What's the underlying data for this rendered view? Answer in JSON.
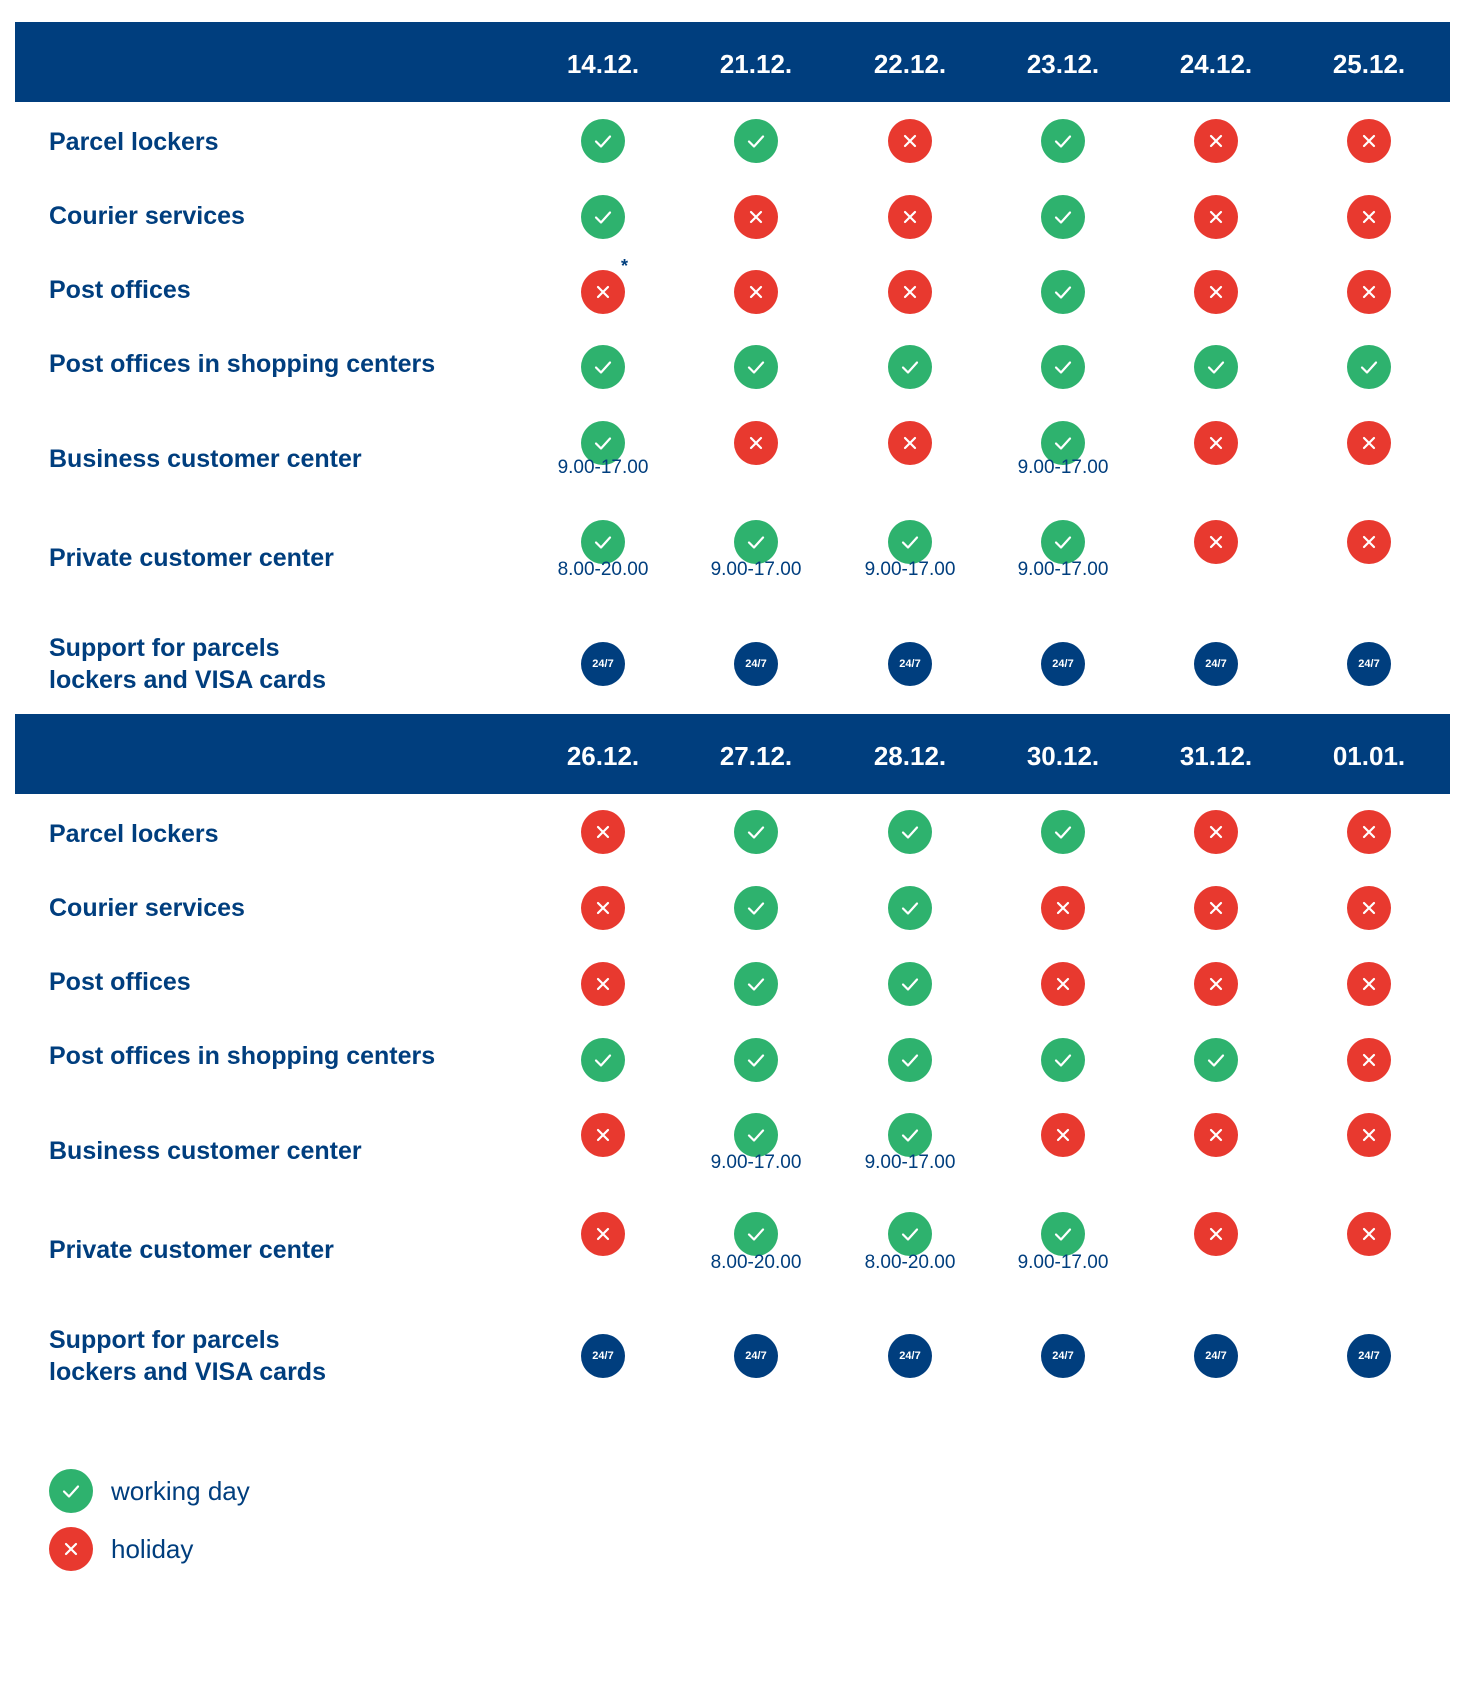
{
  "sections": [
    {
      "dates": [
        "14.12.",
        "21.12.",
        "22.12.",
        "23.12.",
        "24.12.",
        "25.12."
      ],
      "rows": [
        {
          "label": "Parcel lockers",
          "cells": [
            {
              "s": "ok"
            },
            {
              "s": "ok"
            },
            {
              "s": "no"
            },
            {
              "s": "ok"
            },
            {
              "s": "no"
            },
            {
              "s": "no"
            }
          ]
        },
        {
          "label": "Courier services",
          "cells": [
            {
              "s": "ok"
            },
            {
              "s": "no"
            },
            {
              "s": "no"
            },
            {
              "s": "ok"
            },
            {
              "s": "no"
            },
            {
              "s": "no"
            }
          ]
        },
        {
          "label": "Post offices",
          "cells": [
            {
              "s": "no",
              "note": "*"
            },
            {
              "s": "no"
            },
            {
              "s": "no"
            },
            {
              "s": "ok"
            },
            {
              "s": "no"
            },
            {
              "s": "no"
            }
          ]
        },
        {
          "label": "Post offices in shopping centers",
          "cells": [
            {
              "s": "ok"
            },
            {
              "s": "ok"
            },
            {
              "s": "ok"
            },
            {
              "s": "ok"
            },
            {
              "s": "ok"
            },
            {
              "s": "ok"
            }
          ]
        },
        {
          "label": "Business customer center",
          "cells": [
            {
              "s": "ok",
              "hours": "9.00-17.00"
            },
            {
              "s": "no"
            },
            {
              "s": "no"
            },
            {
              "s": "ok",
              "hours": "9.00-17.00"
            },
            {
              "s": "no"
            },
            {
              "s": "no"
            }
          ]
        },
        {
          "label": "Private customer center",
          "cells": [
            {
              "s": "ok",
              "hours": "8.00-20.00"
            },
            {
              "s": "ok",
              "hours": "9.00-17.00"
            },
            {
              "s": "ok",
              "hours": "9.00-17.00"
            },
            {
              "s": "ok",
              "hours": "9.00-17.00"
            },
            {
              "s": "no"
            },
            {
              "s": "no"
            }
          ]
        },
        {
          "label_lines": [
            "Support for parcels",
            "lockers and VISA cards"
          ],
          "support_text": "24/7"
        }
      ]
    },
    {
      "dates": [
        "26.12.",
        "27.12.",
        "28.12.",
        "30.12.",
        "31.12.",
        "01.01."
      ],
      "rows": [
        {
          "label": "Parcel lockers",
          "cells": [
            {
              "s": "no"
            },
            {
              "s": "ok"
            },
            {
              "s": "ok"
            },
            {
              "s": "ok"
            },
            {
              "s": "no"
            },
            {
              "s": "no"
            }
          ]
        },
        {
          "label": "Courier services",
          "cells": [
            {
              "s": "no"
            },
            {
              "s": "ok"
            },
            {
              "s": "ok"
            },
            {
              "s": "no"
            },
            {
              "s": "no"
            },
            {
              "s": "no"
            }
          ]
        },
        {
          "label": "Post offices",
          "cells": [
            {
              "s": "no"
            },
            {
              "s": "ok"
            },
            {
              "s": "ok"
            },
            {
              "s": "no"
            },
            {
              "s": "no"
            },
            {
              "s": "no"
            }
          ]
        },
        {
          "label": "Post offices in shopping centers",
          "cells": [
            {
              "s": "ok"
            },
            {
              "s": "ok"
            },
            {
              "s": "ok"
            },
            {
              "s": "ok"
            },
            {
              "s": "ok"
            },
            {
              "s": "no"
            }
          ]
        },
        {
          "label": "Business customer center",
          "cells": [
            {
              "s": "no"
            },
            {
              "s": "ok",
              "hours": "9.00-17.00"
            },
            {
              "s": "ok",
              "hours": "9.00-17.00"
            },
            {
              "s": "no"
            },
            {
              "s": "no"
            },
            {
              "s": "no"
            }
          ]
        },
        {
          "label": "Private customer center",
          "cells": [
            {
              "s": "no"
            },
            {
              "s": "ok",
              "hours": "8.00-20.00"
            },
            {
              "s": "ok",
              "hours": "8.00-20.00"
            },
            {
              "s": "ok",
              "hours": "9.00-17.00"
            },
            {
              "s": "no"
            },
            {
              "s": "no"
            }
          ]
        },
        {
          "label_lines": [
            "Support for parcels",
            "lockers and VISA cards"
          ],
          "support_text": "24/7"
        }
      ]
    }
  ],
  "legend": {
    "working_day": "working day",
    "holiday": "holiday"
  },
  "colors": {
    "brand_blue": "#003e7e",
    "ok_green": "#2eb26e",
    "holiday_red": "#e8392f"
  },
  "icons": {
    "ok": "check-icon",
    "no": "cross-icon"
  }
}
